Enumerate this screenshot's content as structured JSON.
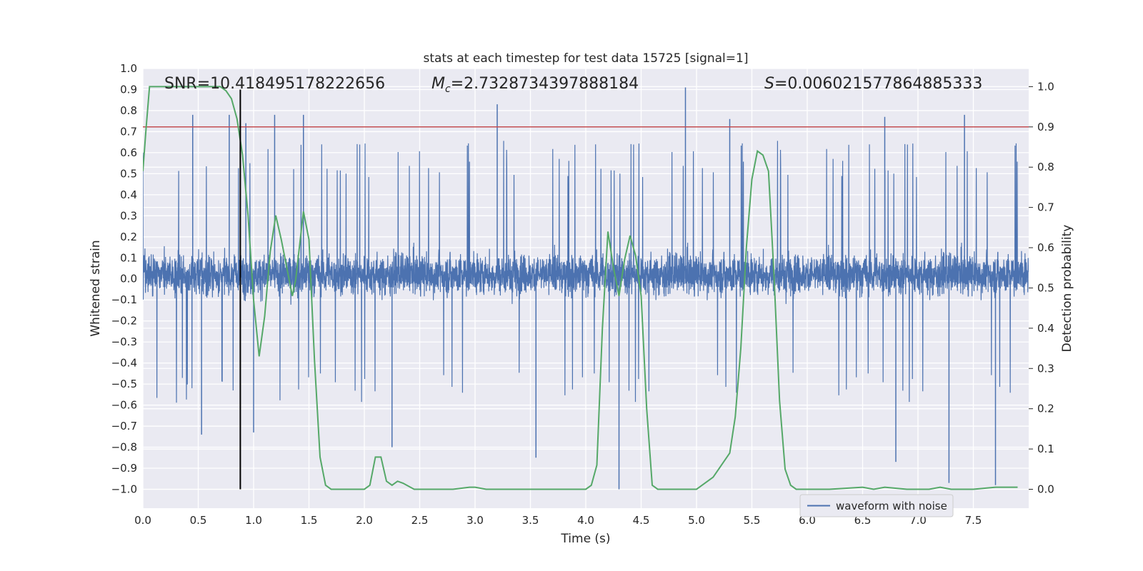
{
  "chart_data": {
    "type": "line",
    "title": "stats at each timestep for test data 15725 [signal=1]",
    "xlabel": "Time (s)",
    "ylabel": "Whitened strain",
    "y2label": "Detection probability",
    "xlim": [
      0.0,
      8.0
    ],
    "ylim": [
      -1.09,
      1.0
    ],
    "y2lim": [
      -0.047,
      1.045
    ],
    "xticks": [
      "0.0",
      "0.5",
      "1.0",
      "1.5",
      "2.0",
      "2.5",
      "3.0",
      "3.5",
      "4.0",
      "4.5",
      "5.0",
      "5.5",
      "6.0",
      "6.5",
      "7.0",
      "7.5"
    ],
    "yticks": [
      "1.0",
      "0.9",
      "0.8",
      "0.7",
      "0.6",
      "0.5",
      "0.4",
      "0.3",
      "0.2",
      "0.1",
      "0.0",
      "−0.1",
      "−0.2",
      "−0.3",
      "−0.4",
      "−0.5",
      "−0.6",
      "−0.7",
      "−0.8",
      "−0.9",
      "−1.0"
    ],
    "y2ticks": [
      "1.0",
      "0.9",
      "0.8",
      "0.7",
      "0.6",
      "0.5",
      "0.4",
      "0.3",
      "0.2",
      "0.1",
      "0.0"
    ],
    "grid": true,
    "legend_position": "lower-right",
    "annotations": {
      "snr": "SNR=10.418495178222656",
      "mc_symbol": "M",
      "mc_sub": "c",
      "mc_value": "=2.7328734397888184",
      "s_symbol": "S",
      "s_value": "=0.006021577864885333"
    },
    "threshold_probability": 0.9,
    "event_time": 0.88,
    "series": [
      {
        "name": "waveform with noise",
        "color": "#4c72b0",
        "axis": "left",
        "description_kind": "noise",
        "envelope_typical": [
          -0.43,
          0.48
        ],
        "spikes": [
          {
            "x": 0.45,
            "y": 0.78
          },
          {
            "x": 0.78,
            "y": 0.78
          },
          {
            "x": 0.93,
            "y": 0.74
          },
          {
            "x": 1.19,
            "y": 0.78
          },
          {
            "x": 1.45,
            "y": 0.78
          },
          {
            "x": 3.2,
            "y": 0.83
          },
          {
            "x": 4.9,
            "y": 0.91
          },
          {
            "x": 0.53,
            "y": -0.74
          },
          {
            "x": 1.0,
            "y": -0.73
          },
          {
            "x": 2.25,
            "y": -0.8
          },
          {
            "x": 3.55,
            "y": -0.85
          },
          {
            "x": 4.3,
            "y": -1.0
          },
          {
            "x": 6.8,
            "y": -0.87
          },
          {
            "x": 7.28,
            "y": -0.97
          },
          {
            "x": 7.7,
            "y": -0.98
          },
          {
            "x": 5.3,
            "y": 0.76
          },
          {
            "x": 6.7,
            "y": 0.77
          },
          {
            "x": 7.42,
            "y": 0.78
          }
        ]
      },
      {
        "name": "",
        "color": "#55a868",
        "axis": "right",
        "x": [
          0.0,
          0.03,
          0.06,
          0.15,
          0.3,
          0.5,
          0.7,
          0.75,
          0.8,
          0.85,
          0.9,
          0.95,
          1.0,
          1.05,
          1.1,
          1.15,
          1.2,
          1.25,
          1.3,
          1.35,
          1.38,
          1.45,
          1.5,
          1.55,
          1.6,
          1.65,
          1.7,
          1.8,
          1.9,
          2.0,
          2.05,
          2.1,
          2.15,
          2.2,
          2.25,
          2.3,
          2.35,
          2.45,
          2.5,
          2.6,
          2.8,
          2.95,
          3.0,
          3.1,
          3.3,
          3.5,
          3.7,
          3.9,
          4.0,
          4.05,
          4.1,
          4.15,
          4.2,
          4.25,
          4.3,
          4.35,
          4.4,
          4.45,
          4.5,
          4.55,
          4.6,
          4.65,
          4.7,
          4.8,
          4.9,
          5.0,
          5.05,
          5.1,
          5.15,
          5.2,
          5.3,
          5.35,
          5.4,
          5.45,
          5.5,
          5.55,
          5.6,
          5.65,
          5.7,
          5.75,
          5.8,
          5.85,
          5.9,
          5.95,
          6.05,
          6.2,
          6.5,
          6.6,
          6.7,
          6.9,
          7.1,
          7.2,
          7.3,
          7.5,
          7.7,
          7.9
        ],
        "y": [
          0.79,
          0.9,
          1.0,
          1.0,
          1.0,
          1.0,
          1.0,
          0.99,
          0.97,
          0.92,
          0.83,
          0.68,
          0.47,
          0.33,
          0.43,
          0.59,
          0.68,
          0.62,
          0.55,
          0.48,
          0.52,
          0.69,
          0.62,
          0.32,
          0.08,
          0.01,
          0.0,
          0.0,
          0.0,
          0.0,
          0.01,
          0.08,
          0.08,
          0.02,
          0.01,
          0.02,
          0.015,
          0.0,
          0.0,
          0.0,
          0.0,
          0.005,
          0.005,
          0.0,
          0.0,
          0.0,
          0.0,
          0.0,
          0.0,
          0.01,
          0.06,
          0.4,
          0.64,
          0.55,
          0.48,
          0.57,
          0.63,
          0.58,
          0.48,
          0.2,
          0.01,
          0.0,
          0.0,
          0.0,
          0.0,
          0.0,
          0.01,
          0.02,
          0.03,
          0.05,
          0.09,
          0.18,
          0.35,
          0.6,
          0.77,
          0.84,
          0.83,
          0.79,
          0.53,
          0.22,
          0.05,
          0.01,
          0.0,
          0.0,
          0.0,
          0.0,
          0.005,
          0.0,
          0.005,
          0.0,
          0.0,
          0.005,
          0.0,
          0.0,
          0.005,
          0.005
        ]
      }
    ]
  }
}
